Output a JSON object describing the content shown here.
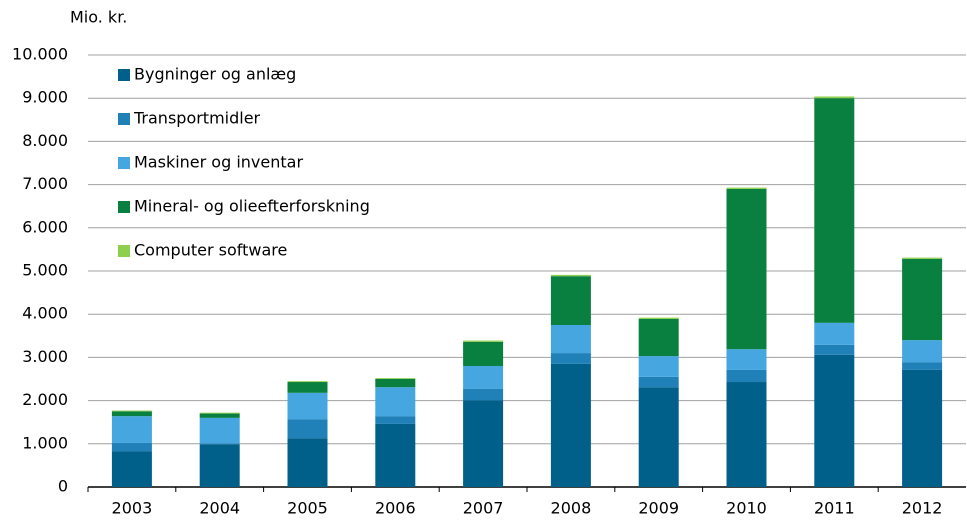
{
  "chart_data": {
    "type": "stacked_bar",
    "y_label": "Mio. kr.",
    "categories": [
      "2003",
      "2004",
      "2005",
      "2006",
      "2007",
      "2008",
      "2009",
      "2010",
      "2011",
      "2012"
    ],
    "series": [
      {
        "name": "Bygninger og anlæg",
        "color": "#00608a",
        "values": [
          830,
          990,
          1130,
          1460,
          2010,
          2850,
          2310,
          2430,
          3060,
          2710
        ]
      },
      {
        "name": "Transportmidler",
        "color": "#2080b8",
        "values": [
          190,
          20,
          440,
          180,
          260,
          250,
          240,
          280,
          230,
          180
        ]
      },
      {
        "name": "Maskiner og inventar",
        "color": "#45a6e0",
        "values": [
          620,
          590,
          610,
          670,
          530,
          650,
          480,
          480,
          510,
          510
        ]
      },
      {
        "name": "Mineral- og olieefterforskning",
        "color": "#0a8040",
        "values": [
          110,
          100,
          250,
          190,
          560,
          1130,
          860,
          3710,
          5200,
          1880
        ]
      },
      {
        "name": "Computer software",
        "color": "#8fcf50",
        "values": [
          20,
          20,
          20,
          20,
          30,
          30,
          30,
          30,
          40,
          30
        ]
      }
    ],
    "ylim": [
      0,
      10000
    ],
    "yticks": [
      0,
      {
        "value": 1000,
        "label": "1.000"
      },
      {
        "value": 2000,
        "label": "2.000"
      },
      {
        "value": 3000,
        "label": "3.000"
      },
      {
        "value": 4000,
        "label": "4.000"
      },
      {
        "value": 5000,
        "label": "5.000"
      },
      {
        "value": 6000,
        "label": "6.000"
      },
      {
        "value": 7000,
        "label": "7.000"
      },
      {
        "value": 8000,
        "label": "8.000"
      },
      {
        "value": 9000,
        "label": "9.000"
      },
      {
        "value": 10000,
        "label": "10.000"
      }
    ],
    "grid": true,
    "legend": "upper-left"
  }
}
